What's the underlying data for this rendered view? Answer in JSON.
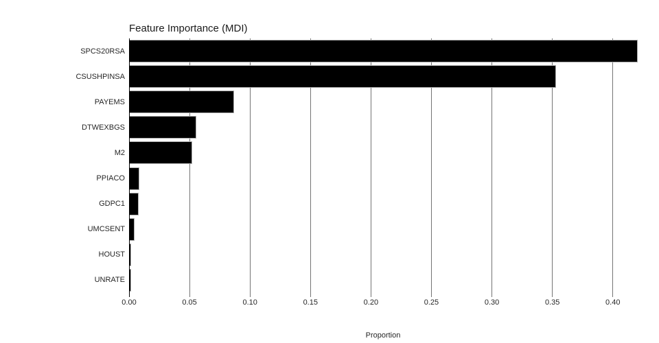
{
  "chart_data": {
    "type": "bar",
    "orientation": "horizontal",
    "title": "Feature Importance (MDI)",
    "xlabel": "Proportion",
    "ylabel": "",
    "categories": [
      "SPCS20RSA",
      "CSUSHPINSA",
      "PAYEMS",
      "DTWEXBGS",
      "M2",
      "PPIACO",
      "GDPC1",
      "UMCSENT",
      "HOUST",
      "UNRATE"
    ],
    "values": [
      0.42,
      0.353,
      0.0865,
      0.0555,
      0.052,
      0.008,
      0.0075,
      0.004,
      0.0015,
      0.0012
    ],
    "xlim": [
      0,
      0.42
    ],
    "xticks": [
      0.0,
      0.05,
      0.1,
      0.15,
      0.2,
      0.25,
      0.3,
      0.35,
      0.4
    ],
    "xtick_labels": [
      "0.00",
      "0.05",
      "0.10",
      "0.15",
      "0.20",
      "0.25",
      "0.30",
      "0.35",
      "0.40"
    ],
    "grid": true,
    "legend": false,
    "colors": {
      "bar_fill": "#000000",
      "bar_edge": "#ababab",
      "gridline": "#737373",
      "axis_line": "#000000",
      "text": "#262626",
      "background": "#ffffff"
    }
  }
}
